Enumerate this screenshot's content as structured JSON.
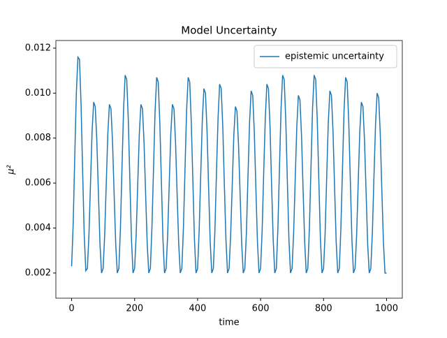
{
  "chart_data": {
    "type": "line",
    "title": "Model Uncertainty",
    "x_label": "time",
    "y_label": "μ²",
    "xlim": [
      -50,
      1050
    ],
    "xticks": [
      0,
      200,
      400,
      600,
      800,
      1000
    ],
    "ylim": [
      0.00088,
      0.01234
    ],
    "yticks": [
      0.002,
      0.004,
      0.006,
      0.008,
      {
        "value": 0.01,
        "label": "0.010"
      },
      0.012
    ],
    "legend": "upper right",
    "x": [
      0,
      5,
      10,
      15,
      20,
      25,
      30,
      35,
      40,
      45,
      50,
      55,
      60,
      65,
      70,
      75,
      80,
      85,
      90,
      95,
      100,
      105,
      110,
      115,
      120,
      125,
      130,
      135,
      140,
      145,
      150,
      155,
      160,
      165,
      170,
      175,
      180,
      185,
      190,
      195,
      200,
      205,
      210,
      215,
      220,
      225,
      230,
      235,
      240,
      245,
      250,
      255,
      260,
      265,
      270,
      275,
      280,
      285,
      290,
      295,
      300,
      305,
      310,
      315,
      320,
      325,
      330,
      335,
      340,
      345,
      350,
      355,
      360,
      365,
      370,
      375,
      380,
      385,
      390,
      395,
      400,
      405,
      410,
      415,
      420,
      425,
      430,
      435,
      440,
      445,
      450,
      455,
      460,
      465,
      470,
      475,
      480,
      485,
      490,
      495,
      500,
      505,
      510,
      515,
      520,
      525,
      530,
      535,
      540,
      545,
      550,
      555,
      560,
      565,
      570,
      575,
      580,
      585,
      590,
      595,
      600,
      605,
      610,
      615,
      620,
      625,
      630,
      635,
      640,
      645,
      650,
      655,
      660,
      665,
      670,
      675,
      680,
      685,
      690,
      695,
      700,
      705,
      710,
      715,
      720,
      725,
      730,
      735,
      740,
      745,
      750,
      755,
      760,
      765,
      770,
      775,
      780,
      785,
      790,
      795,
      800,
      805,
      810,
      815,
      820,
      825,
      830,
      835,
      840,
      845,
      850,
      855,
      860,
      865,
      870,
      875,
      880,
      885,
      890,
      895,
      900,
      905,
      910,
      915,
      920,
      925,
      930,
      935,
      940,
      945,
      950,
      955,
      960,
      965,
      970,
      975,
      980,
      985,
      990,
      995,
      1000
    ],
    "series": [
      {
        "name": "epistemic uncertainty",
        "color": "#1f77b4",
        "values": [
          0.0023,
          0.0042,
          0.0072,
          0.01,
          0.0116,
          0.0115,
          0.0095,
          0.0065,
          0.0037,
          0.0021,
          0.0022,
          0.0037,
          0.006,
          0.0083,
          0.0096,
          0.0094,
          0.0079,
          0.0056,
          0.0033,
          0.002,
          0.0022,
          0.0037,
          0.006,
          0.0082,
          0.0095,
          0.0093,
          0.0078,
          0.0055,
          0.0033,
          0.002,
          0.0022,
          0.004,
          0.0067,
          0.0093,
          0.0108,
          0.0106,
          0.0088,
          0.0061,
          0.0035,
          0.002,
          0.0022,
          0.0037,
          0.006,
          0.0082,
          0.0095,
          0.0093,
          0.0078,
          0.0055,
          0.0033,
          0.002,
          0.0022,
          0.004,
          0.0066,
          0.0092,
          0.0107,
          0.0105,
          0.0087,
          0.0061,
          0.0035,
          0.002,
          0.0022,
          0.0037,
          0.006,
          0.0082,
          0.0095,
          0.0093,
          0.0078,
          0.0055,
          0.0033,
          0.002,
          0.0022,
          0.004,
          0.0066,
          0.0092,
          0.0107,
          0.0105,
          0.0087,
          0.0061,
          0.0035,
          0.002,
          0.0022,
          0.0039,
          0.0064,
          0.0088,
          0.0102,
          0.01,
          0.0083,
          0.0058,
          0.0034,
          0.002,
          0.0022,
          0.0039,
          0.0065,
          0.0089,
          0.0104,
          0.0102,
          0.0085,
          0.0059,
          0.0035,
          0.002,
          0.0022,
          0.0037,
          0.0059,
          0.0081,
          0.0094,
          0.0092,
          0.0077,
          0.0055,
          0.0033,
          0.002,
          0.0022,
          0.0038,
          0.0063,
          0.0087,
          0.0101,
          0.0099,
          0.0083,
          0.0058,
          0.0034,
          0.002,
          0.0022,
          0.0039,
          0.0065,
          0.0089,
          0.0104,
          0.0102,
          0.0085,
          0.0059,
          0.0035,
          0.002,
          0.0022,
          0.004,
          0.0067,
          0.0093,
          0.0108,
          0.0106,
          0.0088,
          0.0061,
          0.0035,
          0.002,
          0.0022,
          0.0038,
          0.0062,
          0.0085,
          0.0099,
          0.0097,
          0.0081,
          0.0057,
          0.0034,
          0.002,
          0.0022,
          0.004,
          0.0067,
          0.0093,
          0.0108,
          0.0106,
          0.0088,
          0.0061,
          0.0035,
          0.002,
          0.0022,
          0.0038,
          0.0063,
          0.0087,
          0.0101,
          0.0099,
          0.0083,
          0.0058,
          0.0034,
          0.002,
          0.0022,
          0.004,
          0.0066,
          0.0092,
          0.0107,
          0.0105,
          0.0087,
          0.0061,
          0.0035,
          0.002,
          0.0022,
          0.0037,
          0.006,
          0.0083,
          0.0096,
          0.0094,
          0.0079,
          0.0056,
          0.0033,
          0.002,
          0.0022,
          0.0038,
          0.0063,
          0.0086,
          0.01,
          0.0098,
          0.0082,
          0.0057,
          0.0034,
          0.002,
          0.002
        ]
      }
    ]
  }
}
